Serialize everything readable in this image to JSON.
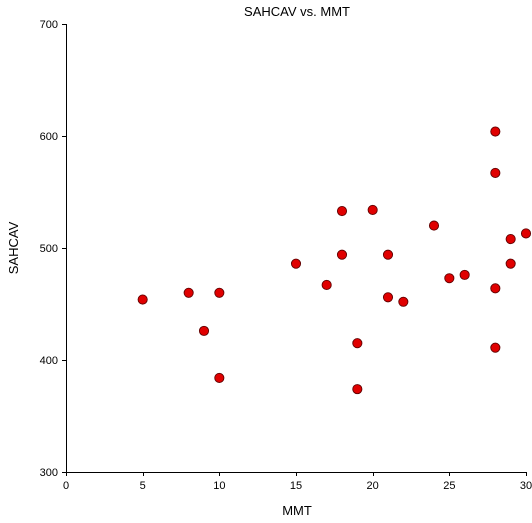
{
  "chart_data": {
    "type": "scatter",
    "title": "SAHCAV vs. MMT",
    "xlabel": "MMT",
    "ylabel": "SAHCAV",
    "xlim": [
      0,
      30
    ],
    "ylim": [
      300,
      700
    ],
    "xticks": [
      0,
      5,
      10,
      15,
      20,
      25,
      30
    ],
    "yticks": [
      300,
      400,
      500,
      600,
      700
    ],
    "grid": false,
    "marker_color": "#e00000",
    "marker_edge_color": "#600000",
    "points": [
      {
        "x": 5,
        "y": 454
      },
      {
        "x": 8,
        "y": 460
      },
      {
        "x": 9,
        "y": 426
      },
      {
        "x": 10,
        "y": 460
      },
      {
        "x": 10,
        "y": 384
      },
      {
        "x": 15,
        "y": 486
      },
      {
        "x": 17,
        "y": 467
      },
      {
        "x": 18,
        "y": 533
      },
      {
        "x": 18,
        "y": 494
      },
      {
        "x": 19,
        "y": 415
      },
      {
        "x": 19,
        "y": 374
      },
      {
        "x": 20,
        "y": 534
      },
      {
        "x": 21,
        "y": 494
      },
      {
        "x": 21,
        "y": 456
      },
      {
        "x": 22,
        "y": 452
      },
      {
        "x": 24,
        "y": 520
      },
      {
        "x": 25,
        "y": 473
      },
      {
        "x": 26,
        "y": 476
      },
      {
        "x": 28,
        "y": 604
      },
      {
        "x": 28,
        "y": 567
      },
      {
        "x": 28,
        "y": 464
      },
      {
        "x": 28,
        "y": 411
      },
      {
        "x": 29,
        "y": 508
      },
      {
        "x": 29,
        "y": 486
      },
      {
        "x": 30,
        "y": 513
      }
    ]
  }
}
